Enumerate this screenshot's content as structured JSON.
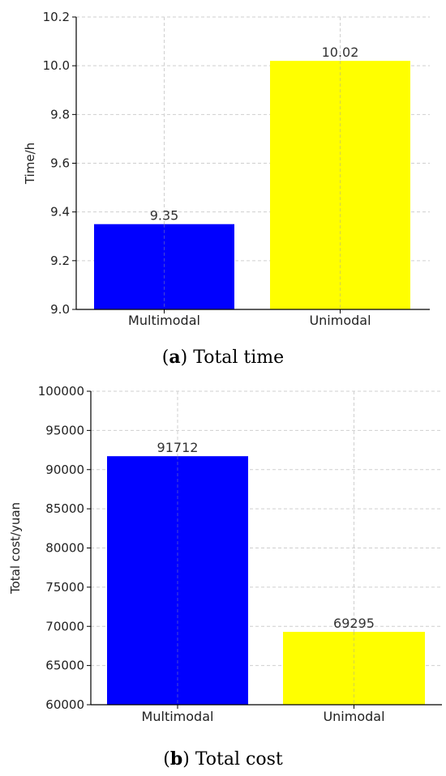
{
  "chart_data": [
    {
      "type": "bar",
      "categories": [
        "Multimodal",
        "Unimodal"
      ],
      "values": [
        9.35,
        10.02
      ],
      "data_labels": [
        "9.35",
        "10.02"
      ],
      "colors": [
        "#0000ff",
        "#ffff00"
      ],
      "ylabel": "Time/h",
      "xlabel": "",
      "ylim": [
        9.0,
        10.2
      ],
      "yticks": [
        "9.0",
        "9.2",
        "9.4",
        "9.6",
        "9.8",
        "10.0",
        "10.2"
      ],
      "grid": true,
      "caption_letter": "a",
      "caption_text": "Total time"
    },
    {
      "type": "bar",
      "categories": [
        "Multimodal",
        "Unimodal"
      ],
      "values": [
        91712,
        69295
      ],
      "data_labels": [
        "91712",
        "69295"
      ],
      "colors": [
        "#0000ff",
        "#ffff00"
      ],
      "ylabel": "Total cost/yuan",
      "xlabel": "",
      "ylim": [
        60000,
        100000
      ],
      "yticks": [
        "60000",
        "65000",
        "70000",
        "75000",
        "80000",
        "85000",
        "90000",
        "95000",
        "100000"
      ],
      "grid": true,
      "caption_letter": "b",
      "caption_text": "Total cost"
    }
  ]
}
